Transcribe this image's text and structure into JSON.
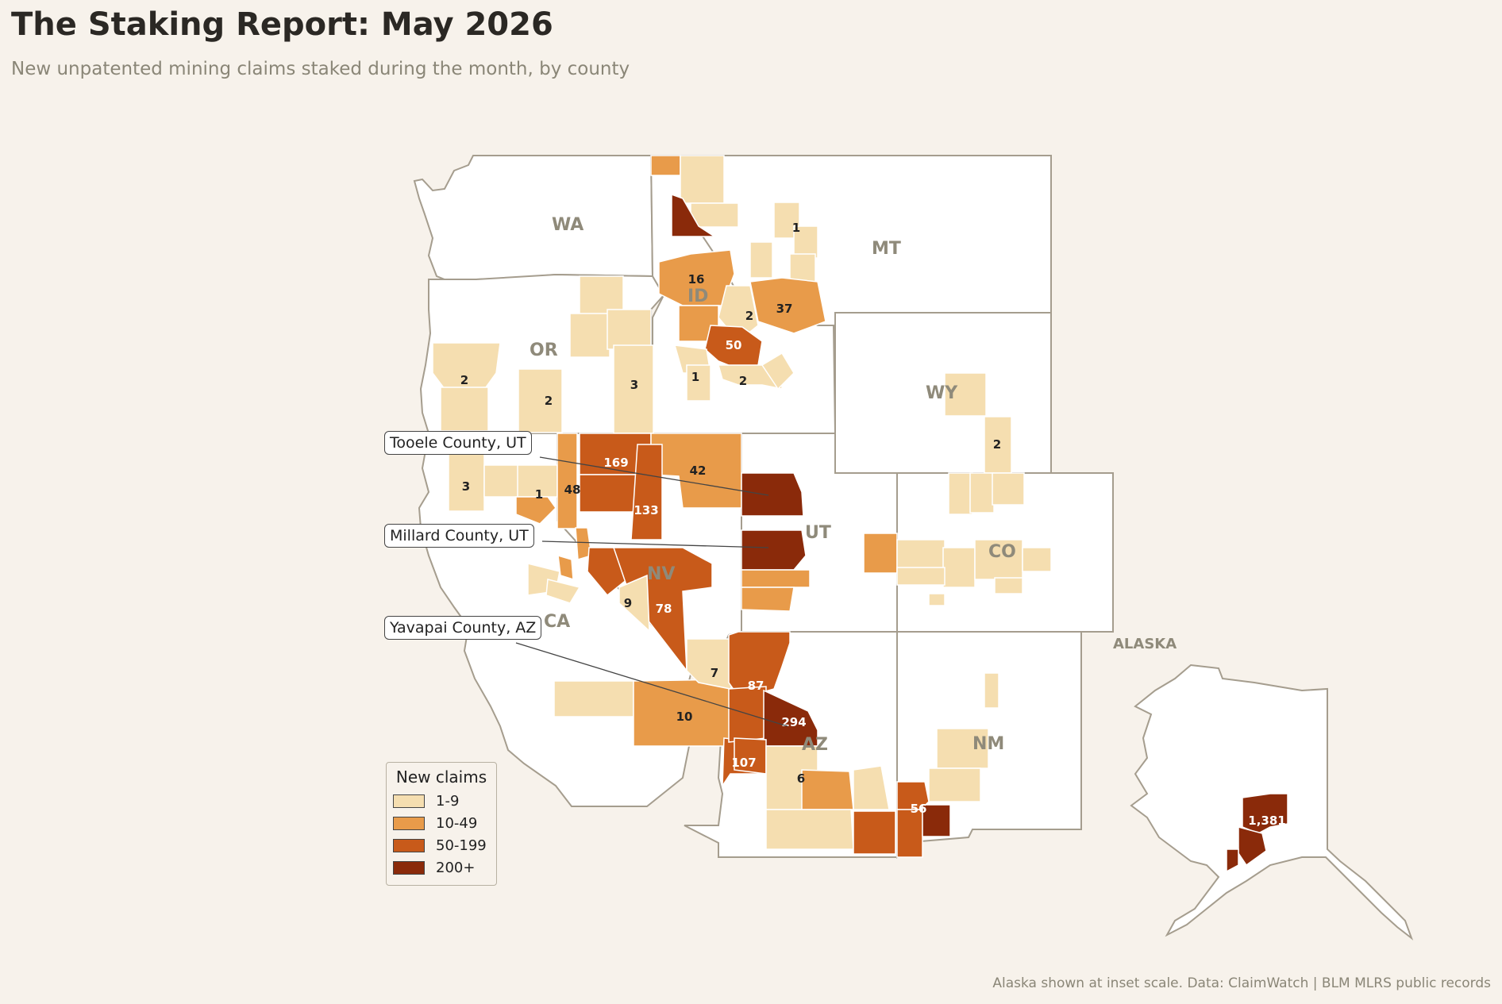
{
  "title": "The Staking Report: May 2026",
  "subtitle": "New unpatented mining claims staked during the month, by county",
  "footer": "Alaska shown at inset scale.   Data: ClaimWatch | BLM MLRS public records",
  "alaska_label": "ALASKA",
  "colors": {
    "background": "#f7f2eb",
    "state_fill": "#ffffff",
    "state_border": "#a59d8e",
    "bin_1_9": "#f5deb0",
    "bin_10_49": "#e89b4a",
    "bin_50_199": "#c85a1a",
    "bin_200_plus": "#8a2a0a"
  },
  "legend": {
    "title": "New claims",
    "items": [
      {
        "label": "1-9",
        "color": "#f5deb0"
      },
      {
        "label": "10-49",
        "color": "#e89b4a"
      },
      {
        "label": "50-199",
        "color": "#c85a1a"
      },
      {
        "label": "200+",
        "color": "#8a2a0a"
      }
    ]
  },
  "states": [
    "WA",
    "OR",
    "CA",
    "ID",
    "NV",
    "MT",
    "WY",
    "UT",
    "CO",
    "AZ",
    "NM"
  ],
  "callouts": [
    {
      "text": "Tooele County, UT"
    },
    {
      "text": "Millard County, UT"
    },
    {
      "text": "Yavapai County, AZ"
    }
  ],
  "county_values": [
    "1",
    "16",
    "37",
    "2",
    "50",
    "1",
    "2",
    "2",
    "2",
    "3",
    "3",
    "1",
    "48",
    "169",
    "42",
    "133",
    "9",
    "78",
    "7",
    "87",
    "294",
    "10",
    "107",
    "6",
    "56",
    "2",
    "1,381"
  ]
}
